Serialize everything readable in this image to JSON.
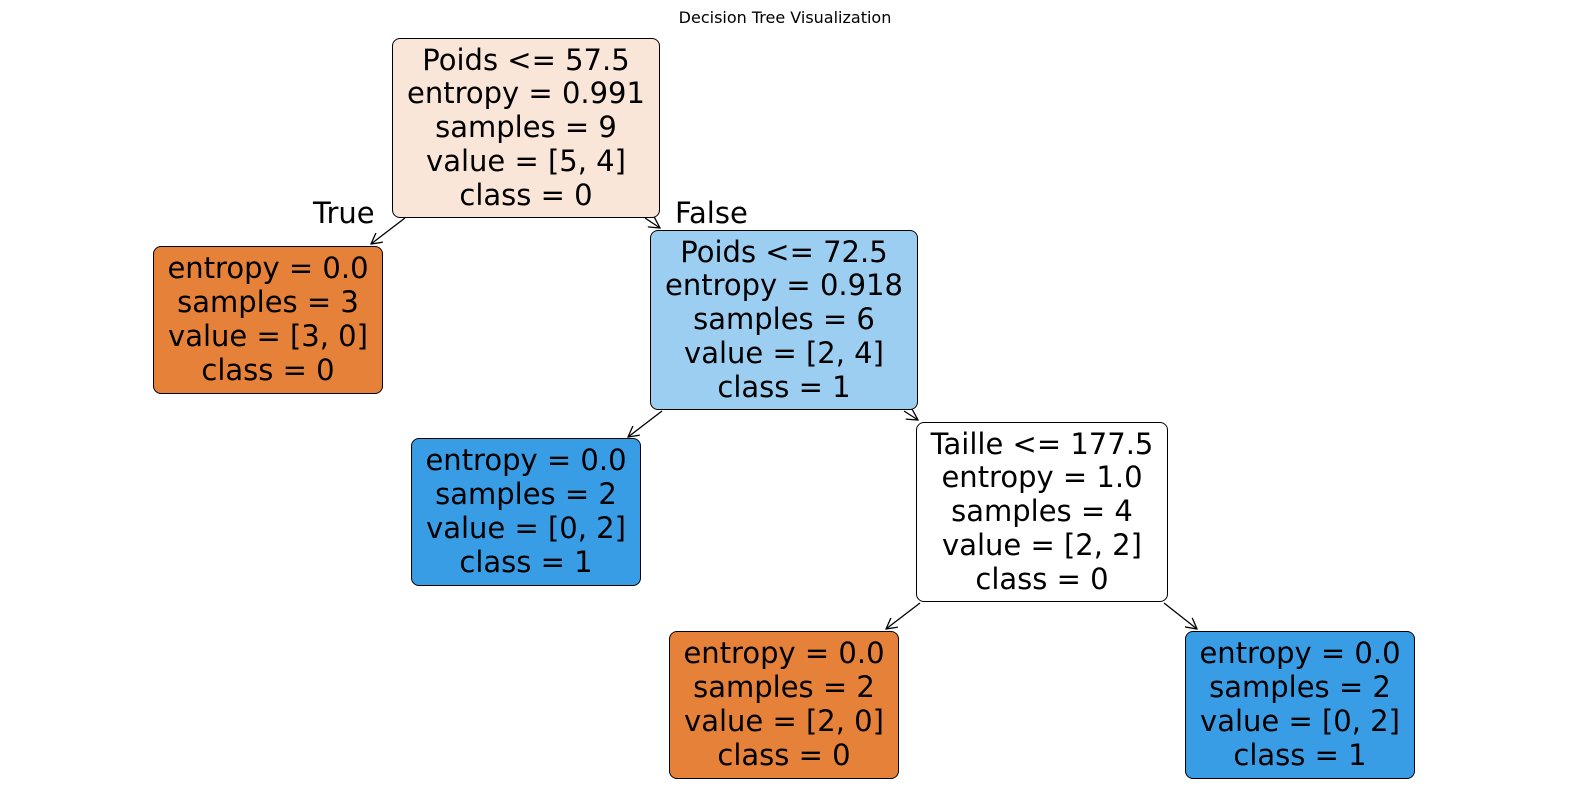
{
  "title": "Decision Tree Visualization",
  "colors": {
    "class0_pure": "#e58139",
    "class0_light": "#fae6d8",
    "class1_pure": "#399de5",
    "class1_light": "#9ccef2",
    "neutral": "#ffffff",
    "border": "#000000"
  },
  "branch_labels": {
    "true": "True",
    "false": "False"
  },
  "nodes": [
    {
      "id": 0,
      "lines": [
        "Poids <= 57.5",
        "entropy = 0.991",
        "samples = 9",
        "value = [5, 4]",
        "class = 0"
      ],
      "fill": "#fae6d8"
    },
    {
      "id": 1,
      "lines": [
        "entropy = 0.0",
        "samples = 3",
        "value = [3, 0]",
        "class = 0"
      ],
      "fill": "#e58139"
    },
    {
      "id": 2,
      "lines": [
        "Poids <= 72.5",
        "entropy = 0.918",
        "samples = 6",
        "value = [2, 4]",
        "class = 1"
      ],
      "fill": "#9ccef2"
    },
    {
      "id": 3,
      "lines": [
        "entropy = 0.0",
        "samples = 2",
        "value = [0, 2]",
        "class = 1"
      ],
      "fill": "#399de5"
    },
    {
      "id": 4,
      "lines": [
        "Taille <= 177.5",
        "entropy = 1.0",
        "samples = 4",
        "value = [2, 2]",
        "class = 0"
      ],
      "fill": "#ffffff"
    },
    {
      "id": 5,
      "lines": [
        "entropy = 0.0",
        "samples = 2",
        "value = [2, 0]",
        "class = 0"
      ],
      "fill": "#e58139"
    },
    {
      "id": 6,
      "lines": [
        "entropy = 0.0",
        "samples = 2",
        "value = [0, 2]",
        "class = 1"
      ],
      "fill": "#399de5"
    }
  ],
  "edges": [
    {
      "from": 0,
      "to": 1
    },
    {
      "from": 0,
      "to": 2
    },
    {
      "from": 2,
      "to": 3
    },
    {
      "from": 2,
      "to": 4
    },
    {
      "from": 4,
      "to": 5
    },
    {
      "from": 4,
      "to": 6
    }
  ]
}
